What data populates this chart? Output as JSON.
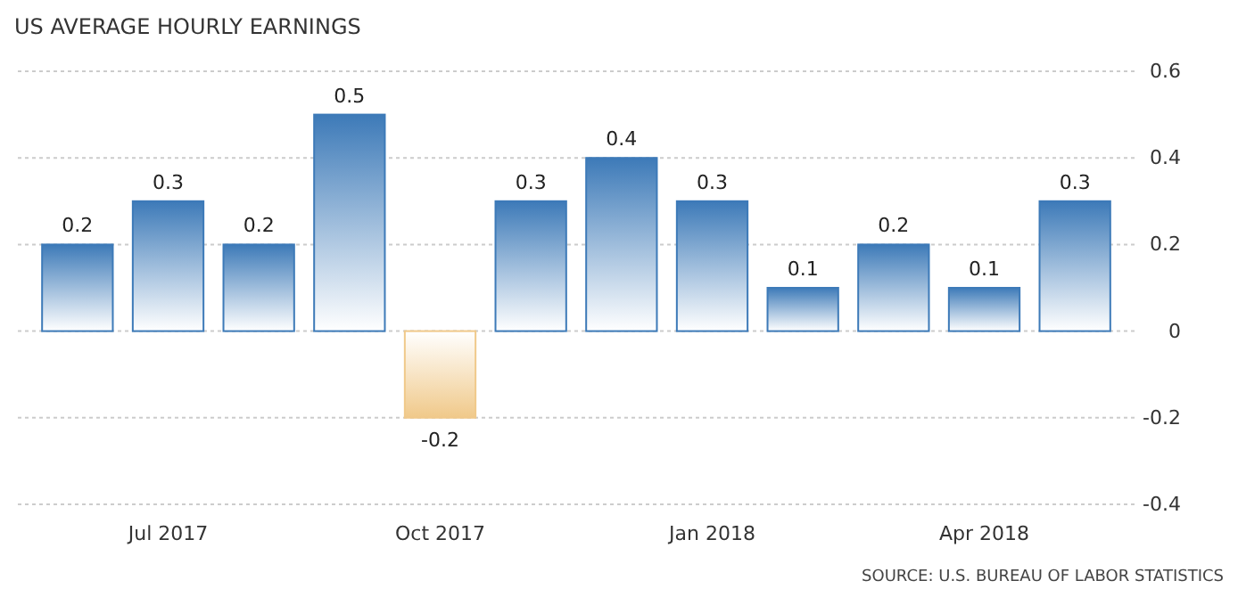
{
  "chart_data": {
    "type": "bar",
    "title": "US AVERAGE HOURLY EARNINGS",
    "categories": [
      null,
      "Jul 2017",
      null,
      null,
      "Oct 2017",
      null,
      null,
      "Jan 2018",
      null,
      null,
      "Apr 2018",
      null
    ],
    "values": [
      0.2,
      0.3,
      0.2,
      0.5,
      -0.2,
      0.3,
      0.4,
      0.3,
      0.1,
      0.2,
      0.1,
      0.3
    ],
    "colors": [
      "#3d7ab8",
      "#3d7ab8",
      "#3d7ab8",
      "#3d7ab8",
      "#f0c98a",
      "#3d7ab8",
      "#3d7ab8",
      "#3d7ab8",
      "#3d7ab8",
      "#3d7ab8",
      "#3d7ab8",
      "#3d7ab8"
    ],
    "ylim": [
      -0.4,
      0.6
    ],
    "yticks": [
      -0.4,
      -0.2,
      0,
      0.2,
      0.4,
      0.6
    ],
    "grid": "y",
    "data_labels": true,
    "annotations": [
      "SOURCE: U.S. BUREAU OF LABOR STATISTICS"
    ]
  }
}
